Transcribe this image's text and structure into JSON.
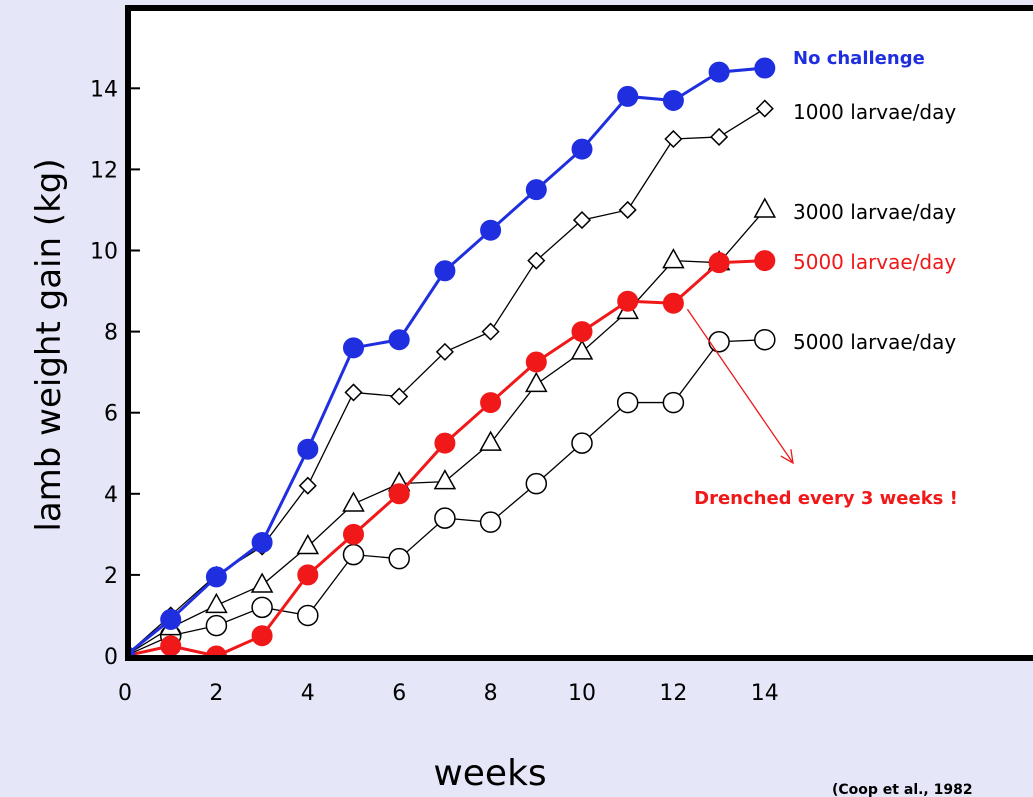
{
  "chart_data": {
    "type": "line",
    "xlabel": "weeks",
    "ylabel": "lamb weight gain (kg)",
    "xlim": [
      0,
      15
    ],
    "ylim": [
      0,
      15
    ],
    "xticks": [
      0,
      2,
      4,
      6,
      8,
      10,
      12,
      14
    ],
    "yticks": [
      0,
      2,
      4,
      6,
      8,
      10,
      12,
      14
    ],
    "grid": false,
    "series": [
      {
        "name": "No challenge",
        "color": "#1f2fe0",
        "marker": "filled-circle",
        "x": [
          0,
          1,
          2,
          3,
          4,
          5,
          6,
          7,
          8,
          9,
          10,
          11,
          12,
          13,
          14
        ],
        "y": [
          0,
          0.9,
          1.95,
          2.8,
          5.1,
          7.6,
          7.8,
          9.5,
          10.5,
          11.5,
          12.5,
          13.8,
          13.7,
          14.4,
          14.5
        ]
      },
      {
        "name": "1000 larvae/day",
        "color": "#000000",
        "marker": "open-diamond",
        "x": [
          0,
          1,
          2,
          3,
          4,
          5,
          6,
          7,
          8,
          9,
          10,
          11,
          12,
          13,
          14
        ],
        "y": [
          0,
          1.0,
          2.0,
          2.7,
          4.2,
          6.5,
          6.4,
          7.5,
          8.0,
          9.75,
          10.75,
          11.0,
          12.75,
          12.8,
          13.5
        ]
      },
      {
        "name": "3000 larvae/day",
        "color": "#000000",
        "marker": "open-triangle",
        "x": [
          0,
          1,
          2,
          3,
          4,
          5,
          6,
          7,
          8,
          9,
          10,
          11,
          12,
          13,
          14
        ],
        "y": [
          0,
          0.7,
          1.25,
          1.75,
          2.7,
          3.75,
          4.25,
          4.3,
          5.25,
          6.7,
          7.5,
          8.5,
          9.75,
          9.7,
          11.0
        ]
      },
      {
        "name": "5000 larvae/day",
        "color": "#f01818",
        "marker": "filled-circle",
        "x": [
          0,
          1,
          2,
          3,
          4,
          5,
          6,
          7,
          8,
          9,
          10,
          11,
          12,
          13,
          14
        ],
        "y": [
          0,
          0.25,
          0,
          0.5,
          2.0,
          3.0,
          4.0,
          5.25,
          6.25,
          7.25,
          8.0,
          8.75,
          8.7,
          9.7,
          9.75
        ]
      },
      {
        "name": "5000 larvae/day",
        "color": "#000000",
        "marker": "open-circle",
        "x": [
          0,
          1,
          2,
          3,
          4,
          5,
          6,
          7,
          8,
          9,
          10,
          11,
          12,
          13,
          14
        ],
        "y": [
          0,
          0.5,
          0.75,
          1.2,
          1.0,
          2.5,
          2.4,
          3.4,
          3.3,
          4.25,
          5.25,
          6.25,
          6.25,
          7.75,
          7.8
        ]
      }
    ],
    "annotations": [
      {
        "text": "Drenched every 3 weeks !",
        "color": "#f01818",
        "points_to_series": 3,
        "points_to_x": 12
      }
    ],
    "source": "(Coop et al., 1982"
  }
}
